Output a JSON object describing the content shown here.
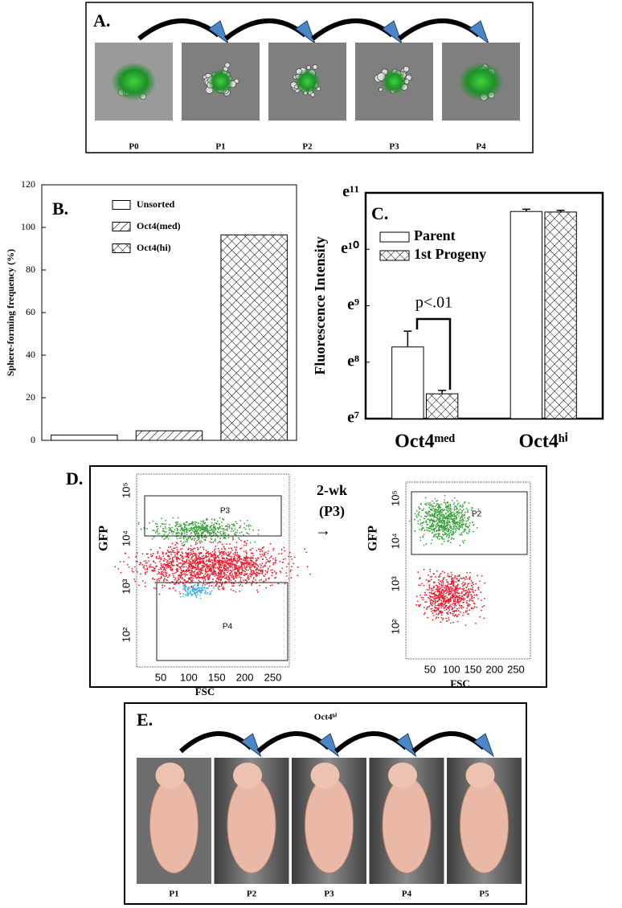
{
  "panel_a": {
    "label": "A.",
    "passages": [
      "P0",
      "P1",
      "P2",
      "P3",
      "P4"
    ]
  },
  "chart_data": [
    {
      "type": "bar",
      "panel_label": "B.",
      "y_label": "Sphere-forming frequency (%)",
      "ylim": [
        0,
        120
      ],
      "yticks": [
        0,
        20,
        40,
        60,
        80,
        100,
        120
      ],
      "categories": [
        null
      ],
      "series": [
        {
          "name": "Unsorted",
          "pattern": "none",
          "values": [
            2.5
          ]
        },
        {
          "name": "Oct4(med)",
          "pattern": "hatch",
          "values": [
            4.5
          ]
        },
        {
          "name": "Oct4(hi)",
          "pattern": "crosshatch",
          "values": [
            96.5
          ]
        }
      ]
    },
    {
      "type": "bar",
      "panel_label": "C.",
      "y_label": "Fluorescence Intensity",
      "ylim": [
        7,
        11
      ],
      "yticks": [
        {
          "value": 7,
          "label": "e⁷"
        },
        {
          "value": 8,
          "label": "e⁸"
        },
        {
          "value": 9,
          "label": "e⁹"
        },
        {
          "value": 10,
          "label": "e¹⁰"
        },
        {
          "value": 11,
          "label": "e¹¹"
        }
      ],
      "categories": [
        "Oct4ᵐᵉᵈ",
        "Oct4ʰⁱ"
      ],
      "series": [
        {
          "name": "Parent",
          "pattern": "none",
          "values": [
            8.27,
            10.67
          ],
          "errors": [
            0.28,
            0.04
          ]
        },
        {
          "name": "1st Progeny",
          "pattern": "crosshatch",
          "values": [
            7.44,
            10.66
          ],
          "errors": [
            0.06,
            0.03
          ]
        }
      ],
      "annotation": "p<.01"
    }
  ],
  "panel_d": {
    "label": "D.",
    "arrow_label": [
      "2-wk",
      "(P3)",
      "→"
    ],
    "plots": [
      {
        "y_label": "GFP",
        "x_label": "FSC",
        "xticks": [
          "50",
          "100",
          "150",
          "200",
          "250"
        ],
        "yticks": [
          "10²",
          "10³",
          "10⁴",
          "10⁵"
        ],
        "gates": [
          "P3",
          "P4"
        ]
      },
      {
        "y_label": "GFP",
        "x_label": "FSC",
        "xticks": [
          "50",
          "100",
          "150",
          "200",
          "250"
        ],
        "yticks": [
          "10²",
          "10³",
          "10⁴",
          "10⁵"
        ],
        "gates": [
          "P2"
        ]
      }
    ]
  },
  "panel_e": {
    "label": "E.",
    "group_label": "Oct4ʰⁱ",
    "passages": [
      "P1",
      "P2",
      "P3",
      "P4",
      "P5"
    ]
  }
}
